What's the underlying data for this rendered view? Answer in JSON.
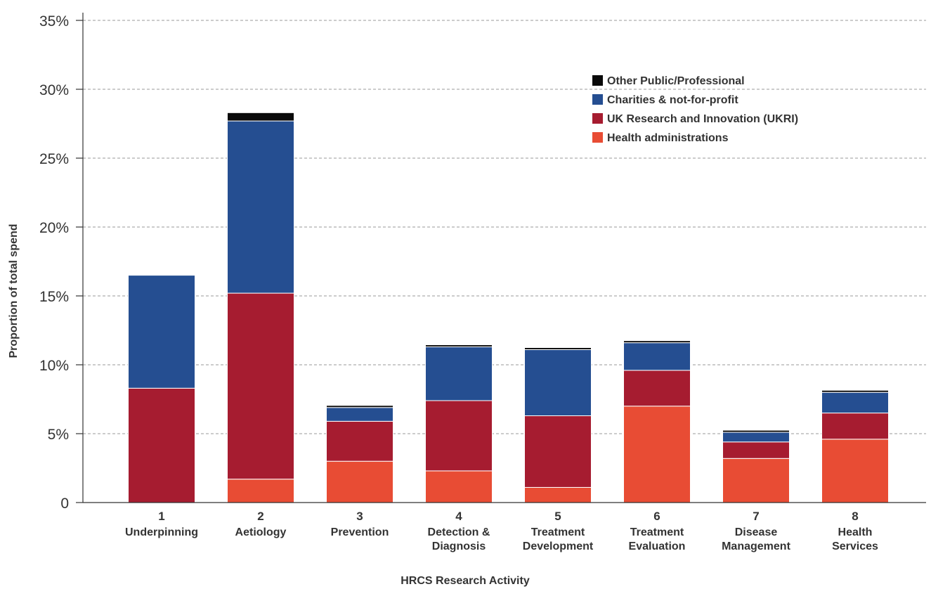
{
  "chart_data": {
    "type": "bar",
    "stacked": true,
    "title": "",
    "xlabel": "HRCS Research Activity",
    "ylabel": "Proportion of total spend",
    "ylim": [
      0,
      35
    ],
    "yticks": [
      {
        "value": 0,
        "label": "0"
      },
      {
        "value": 5,
        "label": "5%"
      },
      {
        "value": 10,
        "label": "10%"
      },
      {
        "value": 15,
        "label": "15%"
      },
      {
        "value": 20,
        "label": "20%"
      },
      {
        "value": 25,
        "label": "25%"
      },
      {
        "value": 30,
        "label": "30%"
      },
      {
        "value": 35,
        "label": "35%"
      }
    ],
    "grid": true,
    "legend_position": "top-right",
    "categories": [
      {
        "num": "1",
        "lines": [
          "Underpinning"
        ]
      },
      {
        "num": "2",
        "lines": [
          "Aetiology"
        ]
      },
      {
        "num": "3",
        "lines": [
          "Prevention"
        ]
      },
      {
        "num": "4",
        "lines": [
          "Detection &",
          "Diagnosis"
        ]
      },
      {
        "num": "5",
        "lines": [
          "Treatment",
          "Development"
        ]
      },
      {
        "num": "6",
        "lines": [
          "Treatment",
          "Evaluation"
        ]
      },
      {
        "num": "7",
        "lines": [
          "Disease",
          "Management"
        ]
      },
      {
        "num": "8",
        "lines": [
          "Health",
          "Services"
        ]
      }
    ],
    "series": [
      {
        "name": "Health administrations",
        "color": "#e84c34",
        "values": [
          0.0,
          1.7,
          3.0,
          2.3,
          1.1,
          7.0,
          3.2,
          4.6
        ]
      },
      {
        "name": "UK Research and Innovation (UKRI)",
        "color": "#a61c30",
        "values": [
          8.3,
          13.5,
          2.9,
          5.1,
          5.2,
          2.6,
          1.2,
          1.9
        ]
      },
      {
        "name": "Charities & not-for-profit",
        "color": "#254e91",
        "values": [
          8.2,
          12.5,
          1.0,
          3.9,
          4.8,
          2.0,
          0.7,
          1.5
        ]
      },
      {
        "name": "Other Public/Professional",
        "color": "#0a0a0a",
        "values": [
          0.0,
          0.6,
          0.15,
          0.15,
          0.15,
          0.15,
          0.15,
          0.15
        ]
      }
    ]
  }
}
